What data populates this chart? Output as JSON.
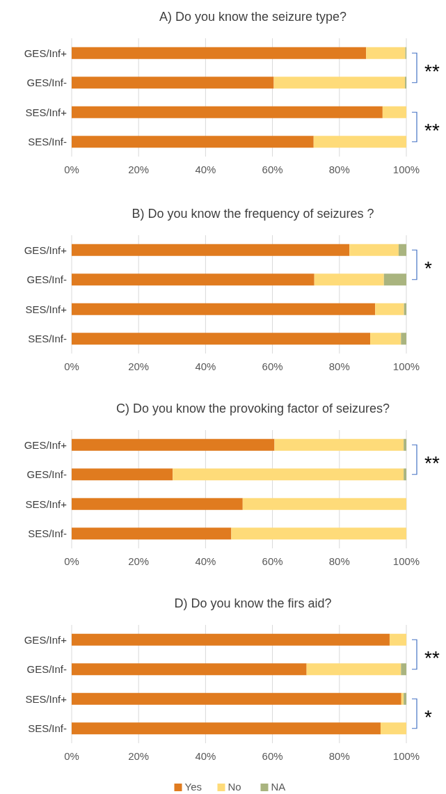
{
  "chart_data": [
    {
      "type": "bar",
      "orientation": "horizontal",
      "stacked": true,
      "title": "A) Do you know the seizure type?",
      "categories": [
        "GES/Inf+",
        "GES/Inf-",
        "SES/Inf+",
        "SES/Inf-"
      ],
      "series": [
        {
          "color": "#e07b1f",
          "values": [
            88.0,
            60.4,
            92.9,
            72.3
          ]
        },
        {
          "color": "#fedb79",
          "values": [
            11.7,
            39.2,
            7.1,
            27.7
          ]
        },
        {
          "color": "#a9b47f",
          "values": [
            0.3,
            0.4,
            null,
            null
          ]
        }
      ],
      "xlim": [
        0,
        100
      ],
      "xticks": [
        {
          "value": 0,
          "label": "0%"
        },
        {
          "value": 20,
          "label": "20%"
        },
        {
          "value": 40,
          "label": "40%"
        },
        {
          "value": 60,
          "label": "60%"
        },
        {
          "value": 80,
          "label": "80%"
        },
        {
          "value": 100,
          "label": "100%"
        }
      ],
      "grid": "x",
      "legend": false,
      "annotations": [
        "**",
        "**"
      ]
    },
    {
      "type": "bar",
      "orientation": "horizontal",
      "stacked": true,
      "title": "B) Do you know the frequency of seizures ?",
      "categories": [
        "GES/Inf+",
        "GES/Inf-",
        "SES/Inf+",
        "SES/Inf-"
      ],
      "series": [
        {
          "color": "#e07b1f",
          "values": [
            83.0,
            72.5,
            90.7,
            89.2
          ]
        },
        {
          "color": "#fedb79",
          "values": [
            14.7,
            20.8,
            8.6,
            9.2
          ]
        },
        {
          "color": "#a9b47f",
          "values": [
            2.3,
            6.7,
            0.7,
            1.6
          ]
        }
      ],
      "xlim": [
        0,
        100
      ],
      "xticks": [
        {
          "value": 0,
          "label": "0%"
        },
        {
          "value": 20,
          "label": "20%"
        },
        {
          "value": 40,
          "label": "40%"
        },
        {
          "value": 60,
          "label": "60%"
        },
        {
          "value": 80,
          "label": "80%"
        },
        {
          "value": 100,
          "label": "100%"
        }
      ],
      "grid": "x",
      "legend": false,
      "annotations": [
        "*"
      ]
    },
    {
      "type": "bar",
      "orientation": "horizontal",
      "stacked": true,
      "title": "C) Do you know the provoking factor of seizures?",
      "categories": [
        "GES/Inf+",
        "GES/Inf-",
        "SES/Inf+",
        "SES/Inf-"
      ],
      "series": [
        {
          "color": "#e07b1f",
          "values": [
            60.6,
            30.2,
            51.1,
            47.7
          ]
        },
        {
          "color": "#fedb79",
          "values": [
            38.6,
            69.0,
            48.9,
            52.3
          ]
        },
        {
          "color": "#a9b47f",
          "values": [
            0.8,
            0.8,
            null,
            null
          ]
        }
      ],
      "xlim": [
        0,
        100
      ],
      "xticks": [
        {
          "value": 0,
          "label": "0%"
        },
        {
          "value": 20,
          "label": "20%"
        },
        {
          "value": 40,
          "label": "40%"
        },
        {
          "value": 60,
          "label": "60%"
        },
        {
          "value": 80,
          "label": "80%"
        },
        {
          "value": 100,
          "label": "100%"
        }
      ],
      "grid": "x",
      "legend": false,
      "annotations": [
        "**"
      ]
    },
    {
      "type": "bar",
      "orientation": "horizontal",
      "stacked": true,
      "title": "D) Do you know the firs aid?",
      "categories": [
        "GES/Inf+",
        "GES/Inf-",
        "SES/Inf+",
        "SES/Inf-"
      ],
      "series": [
        {
          "name": "Yes",
          "color": "#e07b1f",
          "values": [
            95.0,
            70.2,
            98.5,
            92.3
          ]
        },
        {
          "name": "No",
          "color": "#fedb79",
          "values": [
            5.0,
            28.2,
            0.7,
            7.7
          ]
        },
        {
          "name": "NA",
          "color": "#a9b47f",
          "values": [
            null,
            1.6,
            0.8,
            null
          ]
        }
      ],
      "xlim": [
        0,
        100
      ],
      "xticks": [
        {
          "value": 0,
          "label": "0%"
        },
        {
          "value": 20,
          "label": "20%"
        },
        {
          "value": 40,
          "label": "40%"
        },
        {
          "value": 60,
          "label": "60%"
        },
        {
          "value": 80,
          "label": "80%"
        },
        {
          "value": 100,
          "label": "100%"
        }
      ],
      "grid": "x",
      "legend": "bottom",
      "annotations": [
        "**",
        "*"
      ]
    }
  ]
}
